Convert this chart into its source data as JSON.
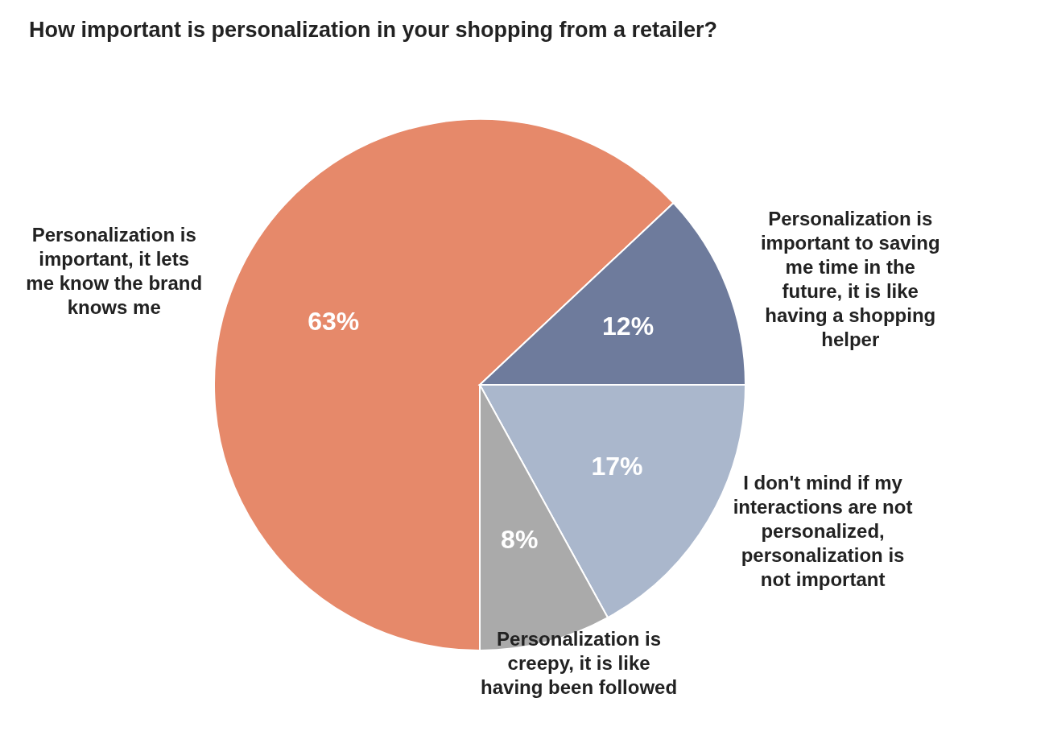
{
  "chart_data": {
    "type": "pie",
    "title": "How important is personalization in your shopping from a retailer?",
    "categories": [
      "Personalization is important, it lets me know the brand knows me",
      "Personalization is important to saving me time in the future, it is like having a shopping helper",
      "I don't mind if my interactions are not personalized, personalization is not important",
      "Personalization is creepy, it is like having been followed"
    ],
    "values": [
      63,
      12,
      17,
      8
    ],
    "colors": [
      "#e6896a",
      "#6e7b9c",
      "#aab7cc",
      "#aaaaaa"
    ],
    "value_labels": [
      "63%",
      "12%",
      "17%",
      "8%"
    ]
  }
}
